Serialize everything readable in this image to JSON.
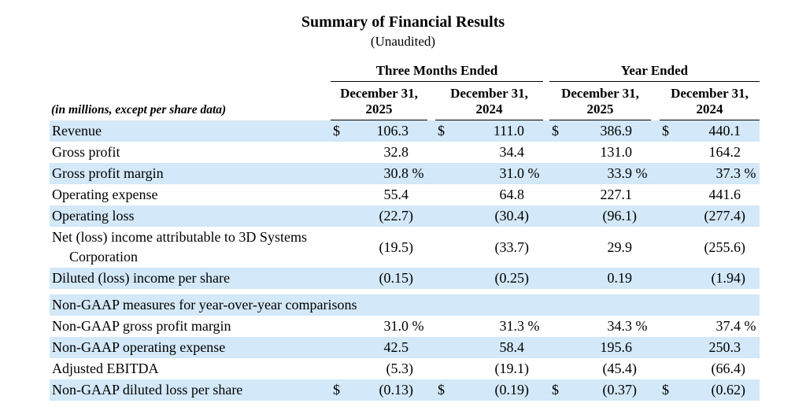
{
  "page": {
    "title": "Summary of Financial Results",
    "subtitle": "(Unaudited)"
  },
  "table": {
    "row_label_header": "(in millions, except per share data)",
    "groups": [
      {
        "label": "Three Months Ended",
        "columns": [
          "December 31,\n2025",
          "December 31,\n2024"
        ]
      },
      {
        "label": "Year Ended",
        "columns": [
          "December 31,\n2025",
          "December 31,\n2024"
        ]
      }
    ],
    "rows": [
      {
        "type": "data",
        "shaded": true,
        "label": "Revenue",
        "cells": [
          {
            "cur": "$",
            "val": "106.3"
          },
          {
            "cur": "$",
            "val": "111.0"
          },
          {
            "cur": "$",
            "val": "386.9"
          },
          {
            "cur": "$",
            "val": "440.1"
          }
        ]
      },
      {
        "type": "data",
        "shaded": false,
        "label": "Gross profit",
        "cells": [
          {
            "cur": "",
            "val": "32.8"
          },
          {
            "cur": "",
            "val": "34.4"
          },
          {
            "cur": "",
            "val": "131.0"
          },
          {
            "cur": "",
            "val": "164.2"
          }
        ]
      },
      {
        "type": "data",
        "shaded": true,
        "label": "Gross profit margin",
        "cells": [
          {
            "cur": "",
            "val": "30.8 %"
          },
          {
            "cur": "",
            "val": "31.0 %"
          },
          {
            "cur": "",
            "val": "33.9 %"
          },
          {
            "cur": "",
            "val": "37.3 %"
          }
        ]
      },
      {
        "type": "data",
        "shaded": false,
        "label": "Operating expense",
        "cells": [
          {
            "cur": "",
            "val": "55.4"
          },
          {
            "cur": "",
            "val": "64.8"
          },
          {
            "cur": "",
            "val": "227.1"
          },
          {
            "cur": "",
            "val": "441.6"
          }
        ]
      },
      {
        "type": "data",
        "shaded": true,
        "label": "Operating loss",
        "cells": [
          {
            "cur": "",
            "val": "(22.7)"
          },
          {
            "cur": "",
            "val": "(30.4)"
          },
          {
            "cur": "",
            "val": "(96.1)"
          },
          {
            "cur": "",
            "val": "(277.4)"
          }
        ]
      },
      {
        "type": "data",
        "shaded": false,
        "label": "Net (loss) income attributable to 3D Systems\nCorporation",
        "cells": [
          {
            "cur": "",
            "val": "(19.5)"
          },
          {
            "cur": "",
            "val": "(33.7)"
          },
          {
            "cur": "",
            "val": "29.9"
          },
          {
            "cur": "",
            "val": "(255.6)"
          }
        ]
      },
      {
        "type": "data",
        "shaded": true,
        "label": "Diluted (loss) income per share",
        "cells": [
          {
            "cur": "",
            "val": "(0.15)"
          },
          {
            "cur": "",
            "val": "(0.25)"
          },
          {
            "cur": "",
            "val": "0.19"
          },
          {
            "cur": "",
            "val": "(1.94)"
          }
        ]
      },
      {
        "type": "spacer"
      },
      {
        "type": "section",
        "shaded": true,
        "label": "Non-GAAP measures for year-over-year comparisons"
      },
      {
        "type": "data",
        "shaded": false,
        "label": "Non-GAAP gross profit margin",
        "cells": [
          {
            "cur": "",
            "val": "31.0 %"
          },
          {
            "cur": "",
            "val": "31.3 %"
          },
          {
            "cur": "",
            "val": "34.3 %"
          },
          {
            "cur": "",
            "val": "37.4 %"
          }
        ]
      },
      {
        "type": "data",
        "shaded": true,
        "label": "Non-GAAP operating expense",
        "cells": [
          {
            "cur": "",
            "val": "42.5"
          },
          {
            "cur": "",
            "val": "58.4"
          },
          {
            "cur": "",
            "val": "195.6"
          },
          {
            "cur": "",
            "val": "250.3"
          }
        ]
      },
      {
        "type": "data",
        "shaded": false,
        "label": "Adjusted EBITDA",
        "cells": [
          {
            "cur": "",
            "val": "(5.3)"
          },
          {
            "cur": "",
            "val": "(19.1)"
          },
          {
            "cur": "",
            "val": "(45.4)"
          },
          {
            "cur": "",
            "val": "(66.4)"
          }
        ]
      },
      {
        "type": "data",
        "shaded": true,
        "label": "Non-GAAP diluted loss per share",
        "cells": [
          {
            "cur": "$",
            "val": "(0.13)"
          },
          {
            "cur": "$",
            "val": "(0.19)"
          },
          {
            "cur": "$",
            "val": "(0.37)"
          },
          {
            "cur": "$",
            "val": "(0.62)"
          }
        ]
      }
    ],
    "shade_color": "#d3e8f8"
  }
}
